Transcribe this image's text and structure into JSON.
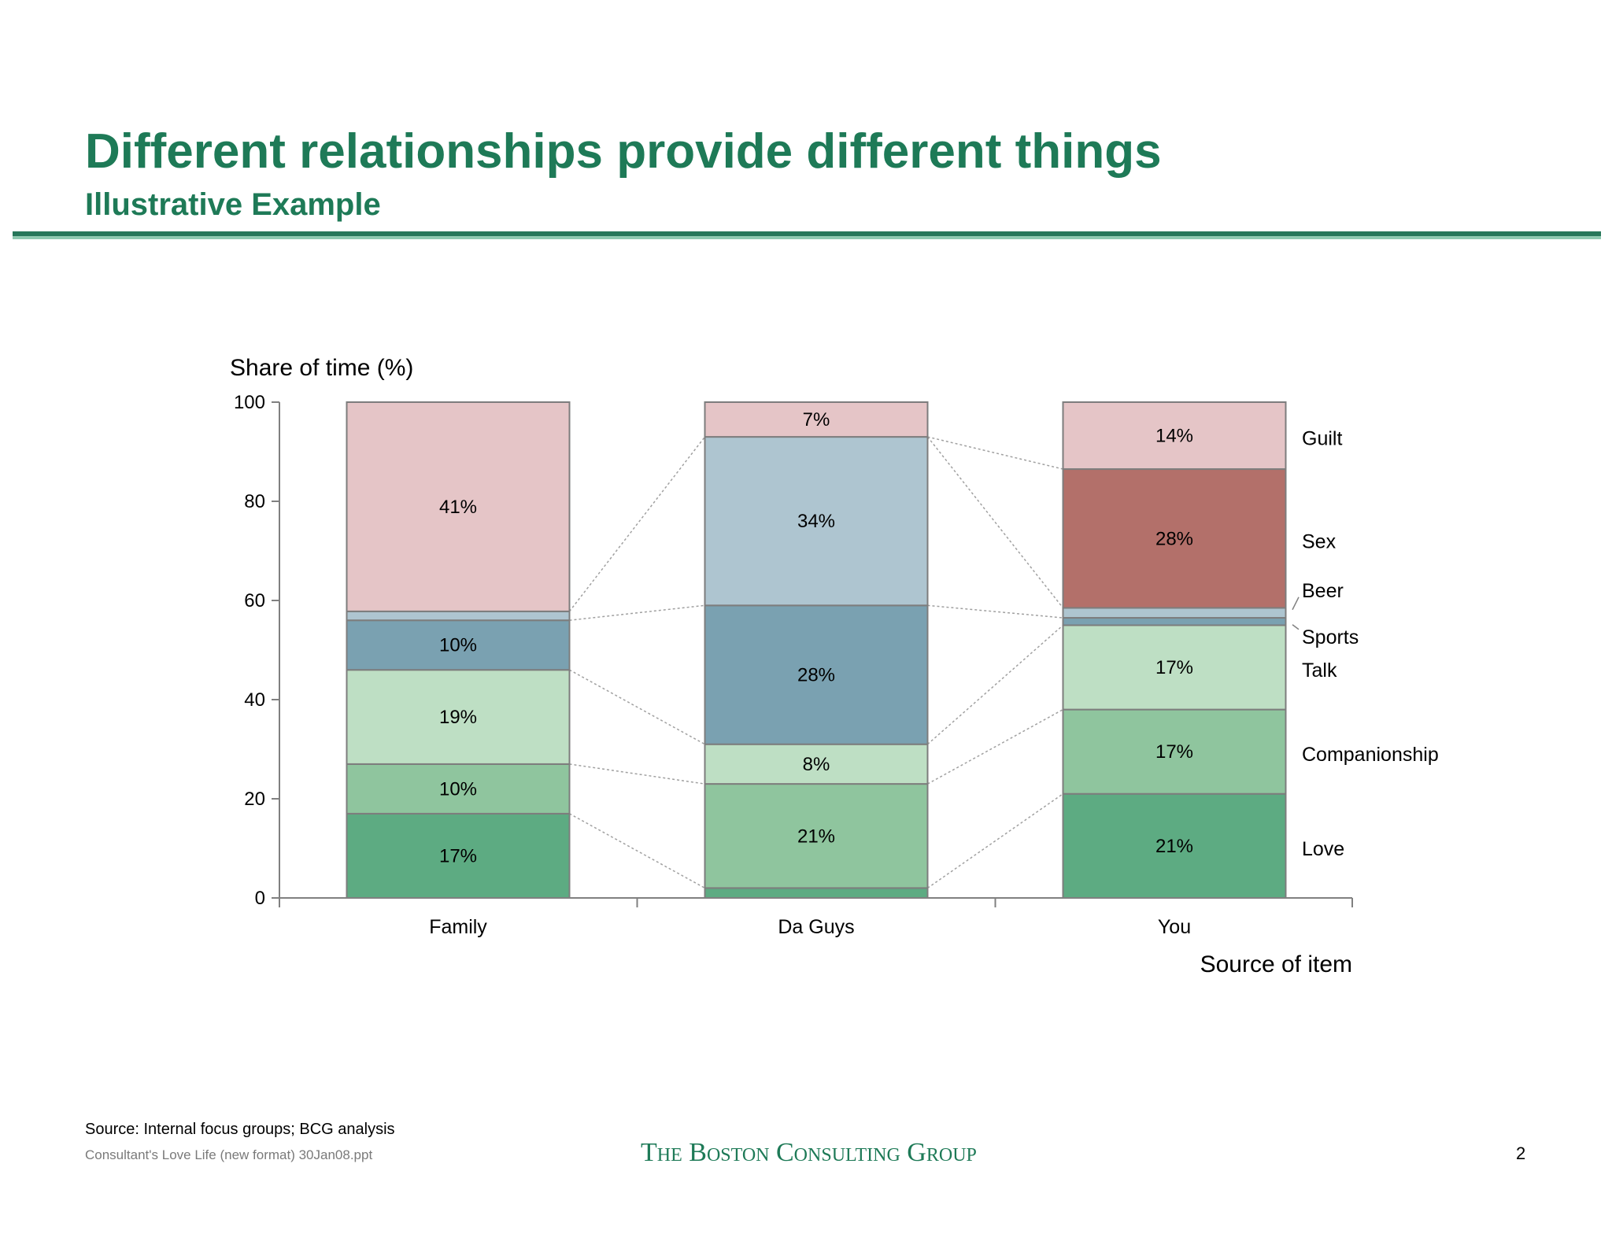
{
  "title": "Different relationships provide different things",
  "subtitle": "Illustrative Example",
  "footer": {
    "source": "Source: Internal focus groups; BCG analysis",
    "file": "Consultant's Love Life (new format) 30Jan08.ppt",
    "logo": "The Boston Consulting Group",
    "page": "2"
  },
  "colors": {
    "Love": "#5dab82",
    "Companionship": "#8fc59e",
    "Talk": "#bedfc4",
    "Sports": "#7aa1b1",
    "Beer": "#aec5d0",
    "Sex": "#b3706a",
    "Guilt": "#e5c5c7",
    "brand": "#1e7a57"
  },
  "chart_data": {
    "type": "bar",
    "stacked": true,
    "ylabel": "Share of time (%)",
    "xlabel": "Source of item",
    "ylim": [
      0,
      100
    ],
    "yticks": [
      0,
      20,
      40,
      60,
      80,
      100
    ],
    "categories": [
      "Family",
      "Da Guys",
      "You"
    ],
    "series": [
      {
        "name": "Love",
        "values": [
          17,
          2,
          21
        ],
        "labels": [
          "17%",
          "",
          "21%"
        ]
      },
      {
        "name": "Companionship",
        "values": [
          10,
          21,
          17
        ],
        "labels": [
          "10%",
          "21%",
          "17%"
        ]
      },
      {
        "name": "Talk",
        "values": [
          19,
          8,
          17
        ],
        "labels": [
          "19%",
          "8%",
          "17%"
        ]
      },
      {
        "name": "Sports",
        "values": [
          10,
          28,
          1.5
        ],
        "labels": [
          "10%",
          "28%",
          ""
        ]
      },
      {
        "name": "Beer",
        "values": [
          1.8,
          34,
          2
        ],
        "labels": [
          "",
          "34%",
          ""
        ]
      },
      {
        "name": "Sex",
        "values": [
          0,
          0,
          28
        ],
        "labels": [
          "",
          "",
          "28%"
        ]
      },
      {
        "name": "Guilt",
        "values": [
          41,
          7,
          14
        ],
        "labels": [
          "41%",
          "7%",
          "14%"
        ]
      }
    ]
  }
}
